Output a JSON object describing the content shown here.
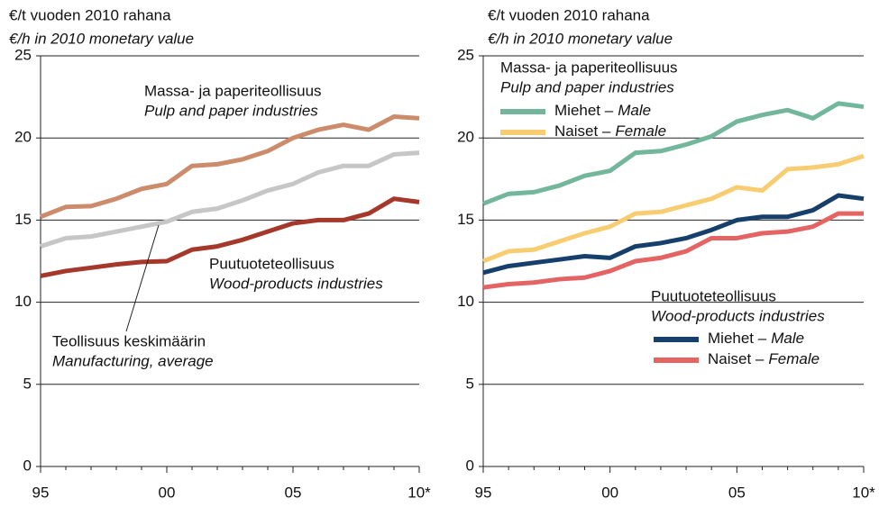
{
  "chart_data": [
    {
      "type": "line",
      "title": "€/t vuoden 2010 rahana",
      "subtitle": "€/h in 2010 monetary value",
      "categories": [
        "95",
        null,
        null,
        null,
        null,
        "00",
        null,
        null,
        null,
        null,
        "05",
        null,
        null,
        null,
        null,
        "10*"
      ],
      "ylim": [
        0,
        25
      ],
      "yticks": [
        0,
        5,
        10,
        15,
        20,
        25
      ],
      "grid": true,
      "series": [
        {
          "name": "Massa- ja paperiteollisuus",
          "name_en": "Pulp and paper industries",
          "color": "#cc8c6c",
          "values": [
            15.2,
            15.8,
            15.85,
            16.3,
            16.9,
            17.2,
            18.3,
            18.4,
            18.7,
            19.2,
            20.0,
            20.5,
            20.8,
            20.5,
            21.3,
            21.2
          ]
        },
        {
          "name": "Teollisuus keskimäärin",
          "name_en": "Manufacturing, average",
          "color": "#c6c6c6",
          "values": [
            13.4,
            13.9,
            14.0,
            14.3,
            14.6,
            14.9,
            15.5,
            15.7,
            16.2,
            16.8,
            17.2,
            17.9,
            18.3,
            18.3,
            19.0,
            19.1
          ]
        },
        {
          "name": "Puutuoteteollisuus",
          "name_en": "Wood-products industries",
          "color": "#a5382a",
          "values": [
            11.6,
            11.9,
            12.1,
            12.3,
            12.45,
            12.5,
            13.2,
            13.4,
            13.8,
            14.3,
            14.8,
            15.0,
            15.0,
            15.4,
            16.3,
            16.1
          ]
        }
      ]
    },
    {
      "type": "line",
      "title": "€/t vuoden 2010 rahana",
      "subtitle": "€/h in 2010 monetary value",
      "categories": [
        "95",
        null,
        null,
        null,
        null,
        "00",
        null,
        null,
        null,
        null,
        "05",
        null,
        null,
        null,
        null,
        "10*"
      ],
      "ylim": [
        0,
        25
      ],
      "yticks": [
        0,
        5,
        10,
        15,
        20,
        25
      ],
      "grid": true,
      "legend_groups": [
        {
          "title": "Massa- ja paperiteollisuus",
          "title_en": "Pulp and paper industries"
        },
        {
          "title": "Puutuoteteollisuus",
          "title_en": "Wood-products industries"
        }
      ],
      "series": [
        {
          "name": "Miehet –",
          "name_en": "Male",
          "group": 0,
          "color": "#72b79c",
          "values": [
            16.0,
            16.6,
            16.7,
            17.1,
            17.7,
            18.0,
            19.1,
            19.2,
            19.6,
            20.1,
            21.0,
            21.4,
            21.7,
            21.2,
            22.1,
            21.9
          ]
        },
        {
          "name": "Naiset –",
          "name_en": "Female",
          "group": 0,
          "color": "#f8cd72",
          "values": [
            12.5,
            13.1,
            13.2,
            13.7,
            14.2,
            14.6,
            15.4,
            15.5,
            15.9,
            16.3,
            17.0,
            16.8,
            18.1,
            18.2,
            18.4,
            18.9
          ]
        },
        {
          "name": "Miehet –",
          "name_en": "Male",
          "group": 1,
          "color": "#163f6c",
          "values": [
            11.8,
            12.2,
            12.4,
            12.6,
            12.8,
            12.7,
            13.4,
            13.6,
            13.9,
            14.4,
            15.0,
            15.2,
            15.2,
            15.6,
            16.5,
            16.3
          ]
        },
        {
          "name": "Naiset –",
          "name_en": "Female",
          "group": 1,
          "color": "#e46464",
          "values": [
            10.9,
            11.1,
            11.2,
            11.4,
            11.5,
            11.9,
            12.5,
            12.7,
            13.1,
            13.9,
            13.9,
            14.2,
            14.3,
            14.6,
            15.4,
            15.4
          ]
        }
      ]
    }
  ]
}
